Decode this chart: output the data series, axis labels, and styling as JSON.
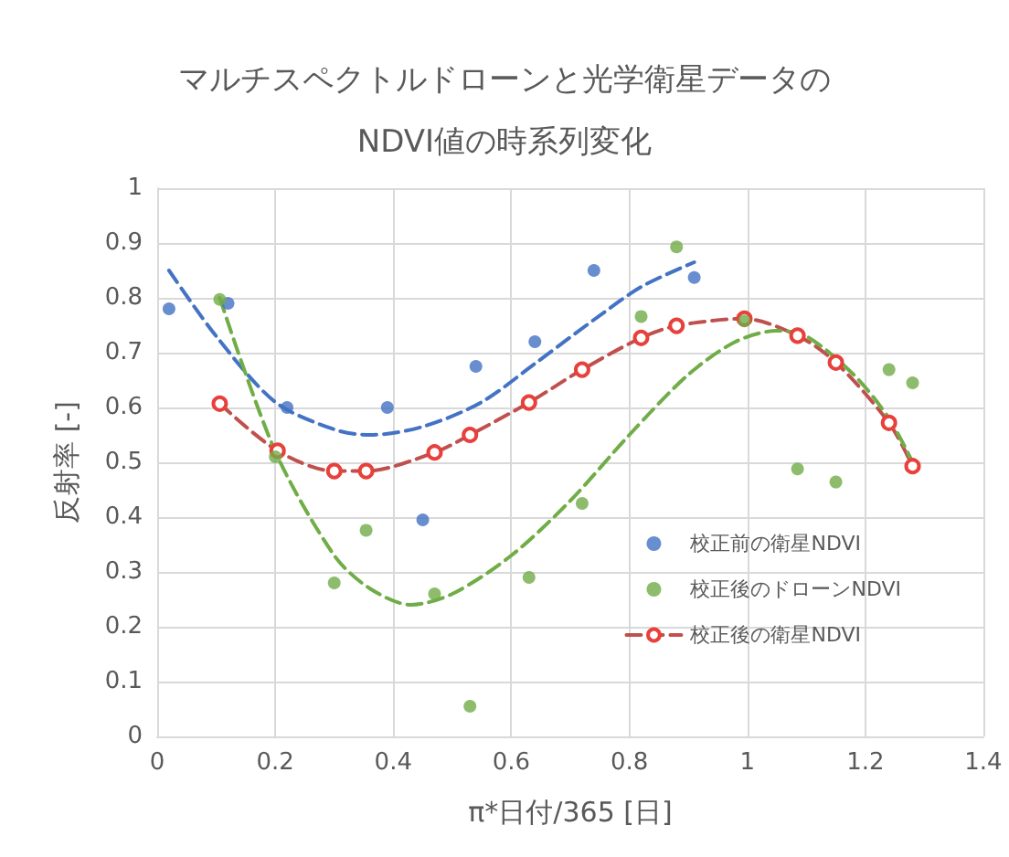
{
  "chart_data": {
    "type": "scatter",
    "title": "マルチスペクトルドローンと光学衛星データの\nNDVI値の時系列変化",
    "xlabel": "π*日付/365 [日]",
    "ylabel": "反射率 [-]",
    "xlim": [
      0,
      1.4
    ],
    "xticks": [
      0,
      0.2,
      0.4,
      0.6,
      0.8,
      1,
      1.2,
      1.4
    ],
    "ylim": [
      0,
      1
    ],
    "yticks": [
      0,
      0.1,
      0.2,
      0.3,
      0.4,
      0.5,
      0.6,
      0.7,
      0.8,
      0.9,
      1
    ],
    "grid": true,
    "legend": "bottom right",
    "series": [
      {
        "name": "校正前の衛星NDVI",
        "color": "#4472c4",
        "marker": "circle",
        "x": [
          0.02,
          0.12,
          0.22,
          0.39,
          0.45,
          0.54,
          0.64,
          0.74,
          0.91
        ],
        "values": [
          0.78,
          0.79,
          0.6,
          0.6,
          0.395,
          0.675,
          0.72,
          0.85,
          0.837
        ]
      },
      {
        "name": "校正後のドローンNDVI",
        "color": "#70ad47",
        "marker": "circle",
        "x": [
          0.106,
          0.2,
          0.3,
          0.354,
          0.47,
          0.53,
          0.63,
          0.72,
          0.82,
          0.88,
          0.995,
          1.085,
          1.15,
          1.24,
          1.28
        ],
        "values": [
          0.797,
          0.51,
          0.28,
          0.376,
          0.26,
          0.055,
          0.29,
          0.425,
          0.766,
          0.893,
          0.758,
          0.488,
          0.464,
          0.669,
          0.645
        ]
      },
      {
        "name": "校正後の衛星NDVI",
        "type": "line",
        "color": "#c0504d",
        "marker": "circle",
        "line_style": "dashed",
        "x": [
          0.106,
          0.204,
          0.3,
          0.354,
          0.47,
          0.53,
          0.63,
          0.72,
          0.82,
          0.88,
          0.995,
          1.085,
          1.15,
          1.24,
          1.28
        ],
        "values": [
          0.607,
          0.521,
          0.484,
          0.484,
          0.518,
          0.55,
          0.609,
          0.669,
          0.727,
          0.749,
          0.762,
          0.731,
          0.682,
          0.572,
          0.493
        ]
      },
      {
        "type": "line",
        "color": "#4472c4",
        "marker": "none",
        "line_style": "dashed",
        "x": [
          0.02,
          0.1,
          0.2,
          0.3,
          0.36,
          0.45,
          0.55,
          0.64,
          0.74,
          0.82,
          0.91
        ],
        "values": [
          0.85,
          0.73,
          0.61,
          0.56,
          0.55,
          0.565,
          0.61,
          0.68,
          0.76,
          0.82,
          0.865
        ]
      },
      {
        "type": "line",
        "color": "#70ad47",
        "marker": "none",
        "line_style": "dashed",
        "x": [
          0.106,
          0.2,
          0.3,
          0.36,
          0.43,
          0.5,
          0.6,
          0.7,
          0.8,
          0.9,
          0.98,
          1.05,
          1.1,
          1.18,
          1.24,
          1.28
        ],
        "values": [
          0.8,
          0.52,
          0.33,
          0.27,
          0.24,
          0.26,
          0.33,
          0.43,
          0.55,
          0.66,
          0.72,
          0.74,
          0.73,
          0.66,
          0.58,
          0.5
        ]
      }
    ]
  }
}
